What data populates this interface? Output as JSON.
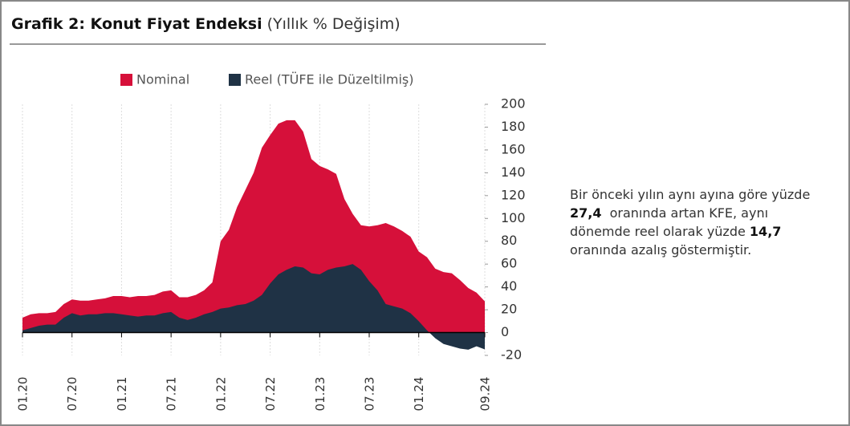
{
  "chart_data": {
    "type": "area",
    "title": "Grafik 2: Konut Fiyat Endeksi",
    "subtitle": "(Yıllık % Değişim)",
    "categories": [
      "01.20",
      null,
      null,
      null,
      null,
      null,
      "07.20",
      null,
      null,
      null,
      null,
      null,
      "01.21",
      null,
      null,
      null,
      null,
      null,
      "07.21",
      null,
      null,
      null,
      null,
      null,
      "01.22",
      null,
      null,
      null,
      null,
      null,
      "07.22",
      null,
      null,
      null,
      null,
      null,
      "01.23",
      null,
      null,
      null,
      null,
      null,
      "07.23",
      null,
      null,
      null,
      null,
      null,
      "01.24",
      null,
      null,
      null,
      null,
      null,
      null,
      null,
      "09.24"
    ],
    "series": [
      {
        "name": "Nominal",
        "color": "#d6103a",
        "values": [
          13,
          16,
          17,
          17,
          18,
          25,
          29,
          28,
          28,
          29,
          30,
          32,
          32,
          31,
          32,
          32,
          33,
          36,
          37,
          31,
          31,
          33,
          37,
          44,
          80,
          90,
          110,
          125,
          140,
          162,
          173,
          183,
          186,
          186,
          176,
          152,
          146,
          143,
          139,
          117,
          104,
          94,
          93,
          94,
          96,
          93,
          89,
          84,
          71,
          66,
          56,
          53,
          52,
          46,
          39,
          35,
          27.4
        ]
      },
      {
        "name": "Reel (TÜFE ile Düzeltilmiş)",
        "color": "#1f3245",
        "values": [
          2,
          4,
          6,
          7,
          7,
          13,
          17,
          15,
          16,
          16,
          17,
          17,
          16,
          15,
          14,
          15,
          15,
          17,
          18,
          13,
          11,
          13,
          16,
          18,
          21,
          22,
          24,
          25,
          28,
          33,
          43,
          51,
          55,
          58,
          57,
          52,
          51,
          55,
          57,
          58,
          60,
          55,
          45,
          37,
          25,
          23,
          21,
          17,
          10,
          2,
          -5,
          -10,
          -12,
          -14,
          -15,
          -12,
          -14.7
        ]
      }
    ],
    "ylim": [
      -20,
      200
    ],
    "yticks": [
      200,
      180,
      160,
      140,
      120,
      100,
      80,
      60,
      40,
      20,
      0,
      -20
    ],
    "grid": true,
    "legend": "top"
  },
  "note": [
    "Bir önceki yılın aynı ayına göre yüzde ",
    "27,4",
    " oranında artan KFE, aynı",
    "dönemde reel olarak yüzde ",
    "14,7",
    "oranında azalış göstermiştir."
  ]
}
